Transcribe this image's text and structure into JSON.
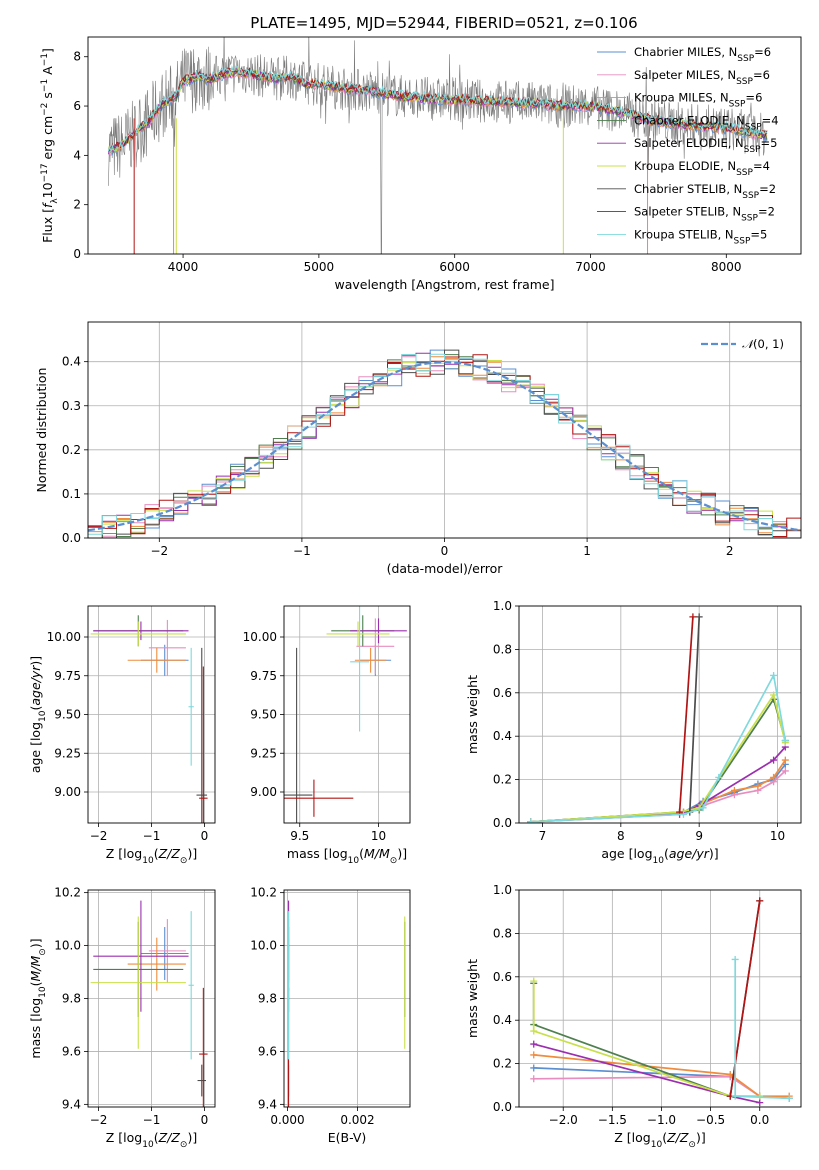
{
  "figure_title": "PLATE=1495, MJD=52944, FIBERID=0521, z=0.106",
  "models": [
    {
      "name": "Chabrier MILES",
      "nssp": "6",
      "color": "#5b8fd0"
    },
    {
      "name": "Salpeter MILES",
      "nssp": "6",
      "color": "#e88dbf"
    },
    {
      "name": "Kroupa MILES",
      "nssp": "6",
      "color": "#ef8c3e"
    },
    {
      "name": "Chabrier ELODIE",
      "nssp": "4",
      "color": "#4f7f4f"
    },
    {
      "name": "Salpeter ELODIE",
      "nssp": "5",
      "color": "#9b2fae"
    },
    {
      "name": "Kroupa ELODIE",
      "nssp": "4",
      "color": "#c9e04a"
    },
    {
      "name": "Chabrier STELIB",
      "nssp": "2",
      "color": "#4d4d4d"
    },
    {
      "name": "Salpeter STELIB",
      "nssp": "2",
      "color": "#b01515"
    },
    {
      "name": "Kroupa STELIB",
      "nssp": "5",
      "color": "#7fd9dd"
    }
  ],
  "chart_data": [
    {
      "id": "spectrum",
      "type": "line",
      "xlabel": "wavelength [Angstrom, rest frame]",
      "ylabel": "Flux [f_λ 10^-17 erg cm^-2 s^-1 A^-1]",
      "xlim": [
        3300,
        8550
      ],
      "ylim": [
        0,
        8.8
      ],
      "xticks": [
        4000,
        5000,
        6000,
        7000,
        8000
      ],
      "yticks": [
        0,
        2,
        4,
        6,
        8
      ],
      "grid": false,
      "legend": "right",
      "model_continuum": {
        "x": [
          3450,
          3550,
          3650,
          3750,
          3850,
          3950,
          4000,
          4100,
          4200,
          4300,
          4400,
          4500,
          4600,
          4700,
          4800,
          4900,
          5000,
          5200,
          5400,
          5600,
          5800,
          6000,
          6200,
          6400,
          6600,
          6800,
          7000,
          7200,
          7400,
          7600,
          7800,
          8000,
          8200,
          8300
        ],
        "y": [
          4.2,
          4.4,
          4.9,
          5.4,
          6.1,
          6.4,
          7.0,
          7.2,
          7.1,
          7.3,
          7.4,
          7.3,
          7.2,
          7.1,
          7.2,
          6.9,
          6.9,
          6.7,
          6.6,
          6.4,
          6.3,
          6.25,
          6.2,
          6.15,
          6.1,
          6.0,
          6.0,
          5.8,
          5.5,
          5.3,
          5.2,
          5.1,
          4.9,
          4.8
        ]
      },
      "data_noise_amplitude": 0.9
    },
    {
      "id": "residuals",
      "type": "line",
      "xlabel": "(data-model)/error",
      "ylabel": "Normed distribution",
      "xlim": [
        -2.5,
        2.5
      ],
      "ylim": [
        0,
        0.49
      ],
      "xticks": [
        -2,
        -1,
        0,
        1,
        2
      ],
      "yticks": [
        0.0,
        0.1,
        0.2,
        0.3,
        0.4
      ],
      "grid": true,
      "legend": "top-right",
      "legend_label": "N(0,1)",
      "bin_width": 0.1
    },
    {
      "id": "age-vs-Z",
      "type": "scatter",
      "xlabel": "Z [log10(Z/Z⊙)]",
      "ylabel": "age  [log10(age/yr)]",
      "xlim": [
        -2.2,
        0.2
      ],
      "ylim": [
        8.8,
        10.2
      ],
      "xticks": [
        -2,
        -1,
        0
      ],
      "yticks": [
        9.0,
        9.25,
        9.5,
        9.75,
        10.0
      ],
      "grid": true,
      "points": [
        {
          "m": 0,
          "x": -0.75,
          "y": 9.85,
          "ex": 0.45,
          "ey": 0.1
        },
        {
          "m": 1,
          "x": -0.7,
          "y": 9.93,
          "ex": 0.35,
          "ey": 0.18
        },
        {
          "m": 2,
          "x": -0.9,
          "y": 9.85,
          "ex": 0.55,
          "ey": 0.08
        },
        {
          "m": 3,
          "x": -1.25,
          "y": 10.04,
          "ex": 0.85,
          "ey": 0.1
        },
        {
          "m": 4,
          "x": -1.2,
          "y": 10.04,
          "ex": 0.9,
          "ey": 0.06
        },
        {
          "m": 5,
          "x": -1.25,
          "y": 10.02,
          "ex": 0.9,
          "ey": 0.08
        },
        {
          "m": 6,
          "x": -0.05,
          "y": 8.98,
          "ex": 0.1,
          "ey": 0.95
        },
        {
          "m": 7,
          "x": -0.02,
          "y": 8.96,
          "ex": 0.08,
          "ey": 0.85
        },
        {
          "m": 8,
          "x": -0.25,
          "y": 9.55,
          "ex": 0.05,
          "ey": 0.38
        }
      ]
    },
    {
      "id": "age-vs-mass",
      "type": "scatter",
      "xlabel": "mass [log10(M/M⊙)]",
      "ylabel": "",
      "xlim": [
        9.4,
        10.2
      ],
      "ylim": [
        8.8,
        10.2
      ],
      "xticks": [
        9.5,
        10.0
      ],
      "yticks": [
        9.0,
        9.25,
        9.5,
        9.75,
        10.0
      ],
      "grid": true,
      "points": [
        {
          "m": 0,
          "x": 9.98,
          "y": 9.85,
          "ex": 0.1,
          "ey": 0.1
        },
        {
          "m": 1,
          "x": 9.98,
          "y": 9.94,
          "ex": 0.12,
          "ey": 0.18
        },
        {
          "m": 2,
          "x": 9.95,
          "y": 9.85,
          "ex": 0.1,
          "ey": 0.08
        },
        {
          "m": 3,
          "x": 9.9,
          "y": 10.04,
          "ex": 0.2,
          "ey": 0.1
        },
        {
          "m": 4,
          "x": 10.0,
          "y": 10.04,
          "ex": 0.18,
          "ey": 0.08
        },
        {
          "m": 5,
          "x": 9.87,
          "y": 10.02,
          "ex": 0.2,
          "ey": 0.08
        },
        {
          "m": 6,
          "x": 9.48,
          "y": 8.98,
          "ex": 0.1,
          "ey": 0.95
        },
        {
          "m": 7,
          "x": 9.59,
          "y": 8.96,
          "ex": 0.25,
          "ey": 0.12
        },
        {
          "m": 8,
          "x": 9.88,
          "y": 9.84,
          "ex": 0.06,
          "ey": 0.45
        }
      ]
    },
    {
      "id": "weight-vs-age",
      "type": "line",
      "xlabel": "age  [log10(age/yr)]",
      "ylabel": "mass weight",
      "xlim": [
        6.7,
        10.3
      ],
      "ylim": [
        0,
        1.0
      ],
      "xticks": [
        7,
        8,
        9,
        10
      ],
      "yticks": [
        0.0,
        0.2,
        0.4,
        0.6,
        0.8,
        1.0
      ],
      "grid": true,
      "series": [
        {
          "m": 0,
          "x": [
            6.85,
            8.8,
            9.05,
            9.45,
            9.75,
            9.95,
            10.1
          ],
          "y": [
            0.005,
            0.05,
            0.1,
            0.14,
            0.18,
            0.2,
            0.27
          ]
        },
        {
          "m": 1,
          "x": [
            6.85,
            8.8,
            9.05,
            9.45,
            9.75,
            9.95,
            10.1
          ],
          "y": [
            0.005,
            0.05,
            0.08,
            0.13,
            0.15,
            0.19,
            0.24
          ]
        },
        {
          "m": 2,
          "x": [
            6.85,
            8.8,
            9.05,
            9.45,
            9.75,
            9.95,
            10.1
          ],
          "y": [
            0.005,
            0.05,
            0.09,
            0.15,
            0.17,
            0.21,
            0.29
          ]
        },
        {
          "m": 3,
          "x": [
            6.85,
            8.75,
            9.0,
            9.95,
            10.1
          ],
          "y": [
            0.005,
            0.05,
            0.06,
            0.57,
            0.38
          ]
        },
        {
          "m": 4,
          "x": [
            6.85,
            8.75,
            9.0,
            9.95,
            10.1
          ],
          "y": [
            0.005,
            0.04,
            0.08,
            0.29,
            0.35
          ]
        },
        {
          "m": 5,
          "x": [
            6.85,
            8.75,
            9.0,
            9.95,
            10.1
          ],
          "y": [
            0.005,
            0.05,
            0.07,
            0.59,
            0.37
          ]
        },
        {
          "m": 6,
          "x": [
            8.88,
            9.0
          ],
          "y": [
            0.05,
            0.95
          ]
        },
        {
          "m": 7,
          "x": [
            8.75,
            8.92
          ],
          "y": [
            0.05,
            0.95
          ]
        },
        {
          "m": 8,
          "x": [
            6.85,
            8.8,
            9.05,
            9.25,
            9.95,
            10.1
          ],
          "y": [
            0.005,
            0.04,
            0.07,
            0.21,
            0.68,
            0.38
          ]
        }
      ]
    },
    {
      "id": "mass-vs-Z",
      "type": "scatter",
      "xlabel": "Z [log10(Z/Z⊙)]",
      "ylabel": "mass [log10(M/M⊙)]",
      "xlim": [
        -2.2,
        0.2
      ],
      "ylim": [
        9.39,
        10.21
      ],
      "xticks": [
        -2,
        -1,
        0
      ],
      "yticks": [
        9.4,
        9.6,
        9.8,
        10.0,
        10.2
      ],
      "grid": true,
      "points": [
        {
          "m": 0,
          "x": -0.75,
          "y": 9.97,
          "ex": 0.45,
          "ey": 0.1
        },
        {
          "m": 1,
          "x": -0.7,
          "y": 9.98,
          "ex": 0.35,
          "ey": 0.12
        },
        {
          "m": 2,
          "x": -0.9,
          "y": 9.93,
          "ex": 0.55,
          "ey": 0.1
        },
        {
          "m": 3,
          "x": -1.25,
          "y": 9.91,
          "ex": 0.85,
          "ey": 0.18
        },
        {
          "m": 4,
          "x": -1.2,
          "y": 9.96,
          "ex": 0.9,
          "ey": 0.21
        },
        {
          "m": 5,
          "x": -1.25,
          "y": 9.86,
          "ex": 0.9,
          "ey": 0.25
        },
        {
          "m": 6,
          "x": -0.05,
          "y": 9.49,
          "ex": 0.08,
          "ey": 0.06
        },
        {
          "m": 7,
          "x": -0.02,
          "y": 9.59,
          "ex": 0.08,
          "ey": 0.25
        },
        {
          "m": 8,
          "x": -0.25,
          "y": 9.85,
          "ex": 0.05,
          "ey": 0.28
        }
      ]
    },
    {
      "id": "mass-vs-EBV",
      "type": "scatter",
      "xlabel": "E(B-V)",
      "ylabel": "",
      "xlim": [
        -0.0001,
        0.0035
      ],
      "ylim": [
        9.39,
        10.21
      ],
      "xticks": [
        0.0,
        0.002
      ],
      "xticklabels": [
        "0.000",
        "0.002"
      ],
      "yticks": [
        9.4,
        9.6,
        9.8,
        10.0,
        10.2
      ],
      "grid": true,
      "points": [
        {
          "m": 0,
          "x": 3e-05,
          "y": 9.97,
          "ex": 0,
          "ey": 0.1
        },
        {
          "m": 1,
          "x": 3e-05,
          "y": 9.98,
          "ex": 0,
          "ey": 0.12
        },
        {
          "m": 2,
          "x": 3e-05,
          "y": 9.93,
          "ex": 0,
          "ey": 0.1
        },
        {
          "m": 3,
          "x": 0.00335,
          "y": 9.91,
          "ex": 0,
          "ey": 0.18
        },
        {
          "m": 4,
          "x": 3e-05,
          "y": 9.96,
          "ex": 0,
          "ey": 0.21
        },
        {
          "m": 5,
          "x": 0.00335,
          "y": 9.86,
          "ex": 0,
          "ey": 0.25
        },
        {
          "m": 6,
          "x": 3e-05,
          "y": 9.49,
          "ex": 0,
          "ey": 0.06
        },
        {
          "m": 7,
          "x": 3e-05,
          "y": 9.59,
          "ex": 0,
          "ey": 0.25
        },
        {
          "m": 8,
          "x": 3e-05,
          "y": 9.85,
          "ex": 0,
          "ey": 0.28
        }
      ]
    },
    {
      "id": "weight-vs-Z",
      "type": "line",
      "xlabel": "Z [log10(Z/Z⊙)]",
      "ylabel": "mass weight",
      "xlim": [
        -2.45,
        0.42
      ],
      "ylim": [
        0,
        1.0
      ],
      "xticks": [
        -2.0,
        -1.5,
        -1.0,
        -0.5,
        0.0
      ],
      "xticklabels": [
        "−2.0",
        "−1.5",
        "−1.0",
        "−0.5",
        "0.0"
      ],
      "yticks": [
        0.0,
        0.2,
        0.4,
        0.6,
        0.8,
        1.0
      ],
      "grid": true,
      "series": [
        {
          "m": 0,
          "x": [
            -2.3,
            -0.3,
            0.0,
            0.3
          ],
          "y": [
            0.18,
            0.14,
            0.05,
            0.04
          ]
        },
        {
          "m": 1,
          "x": [
            -2.3,
            -0.3,
            0.0,
            0.3
          ],
          "y": [
            0.13,
            0.14,
            0.05,
            0.04
          ]
        },
        {
          "m": 2,
          "x": [
            -2.3,
            -0.3,
            0.0,
            0.3
          ],
          "y": [
            0.24,
            0.15,
            0.05,
            0.05
          ]
        },
        {
          "m": 3,
          "x": [
            -2.3,
            -2.3,
            -0.3,
            0.0
          ],
          "y": [
            0.57,
            0.38,
            0.05,
            0.05
          ]
        },
        {
          "m": 4,
          "x": [
            -2.3,
            -0.3,
            0.0
          ],
          "y": [
            0.29,
            0.05,
            0.02
          ]
        },
        {
          "m": 5,
          "x": [
            -2.3,
            -2.3,
            -0.3,
            0.0
          ],
          "y": [
            0.58,
            0.35,
            0.05,
            0.05
          ]
        },
        {
          "m": 6,
          "x": [
            -0.3,
            0.0
          ],
          "y": [
            0.05,
            0.95
          ]
        },
        {
          "m": 7,
          "x": [
            -0.3,
            0.0
          ],
          "y": [
            0.05,
            0.95
          ]
        },
        {
          "m": 8,
          "x": [
            -0.25,
            -0.25,
            0.3
          ],
          "y": [
            0.68,
            0.05,
            0.04
          ]
        }
      ]
    }
  ]
}
